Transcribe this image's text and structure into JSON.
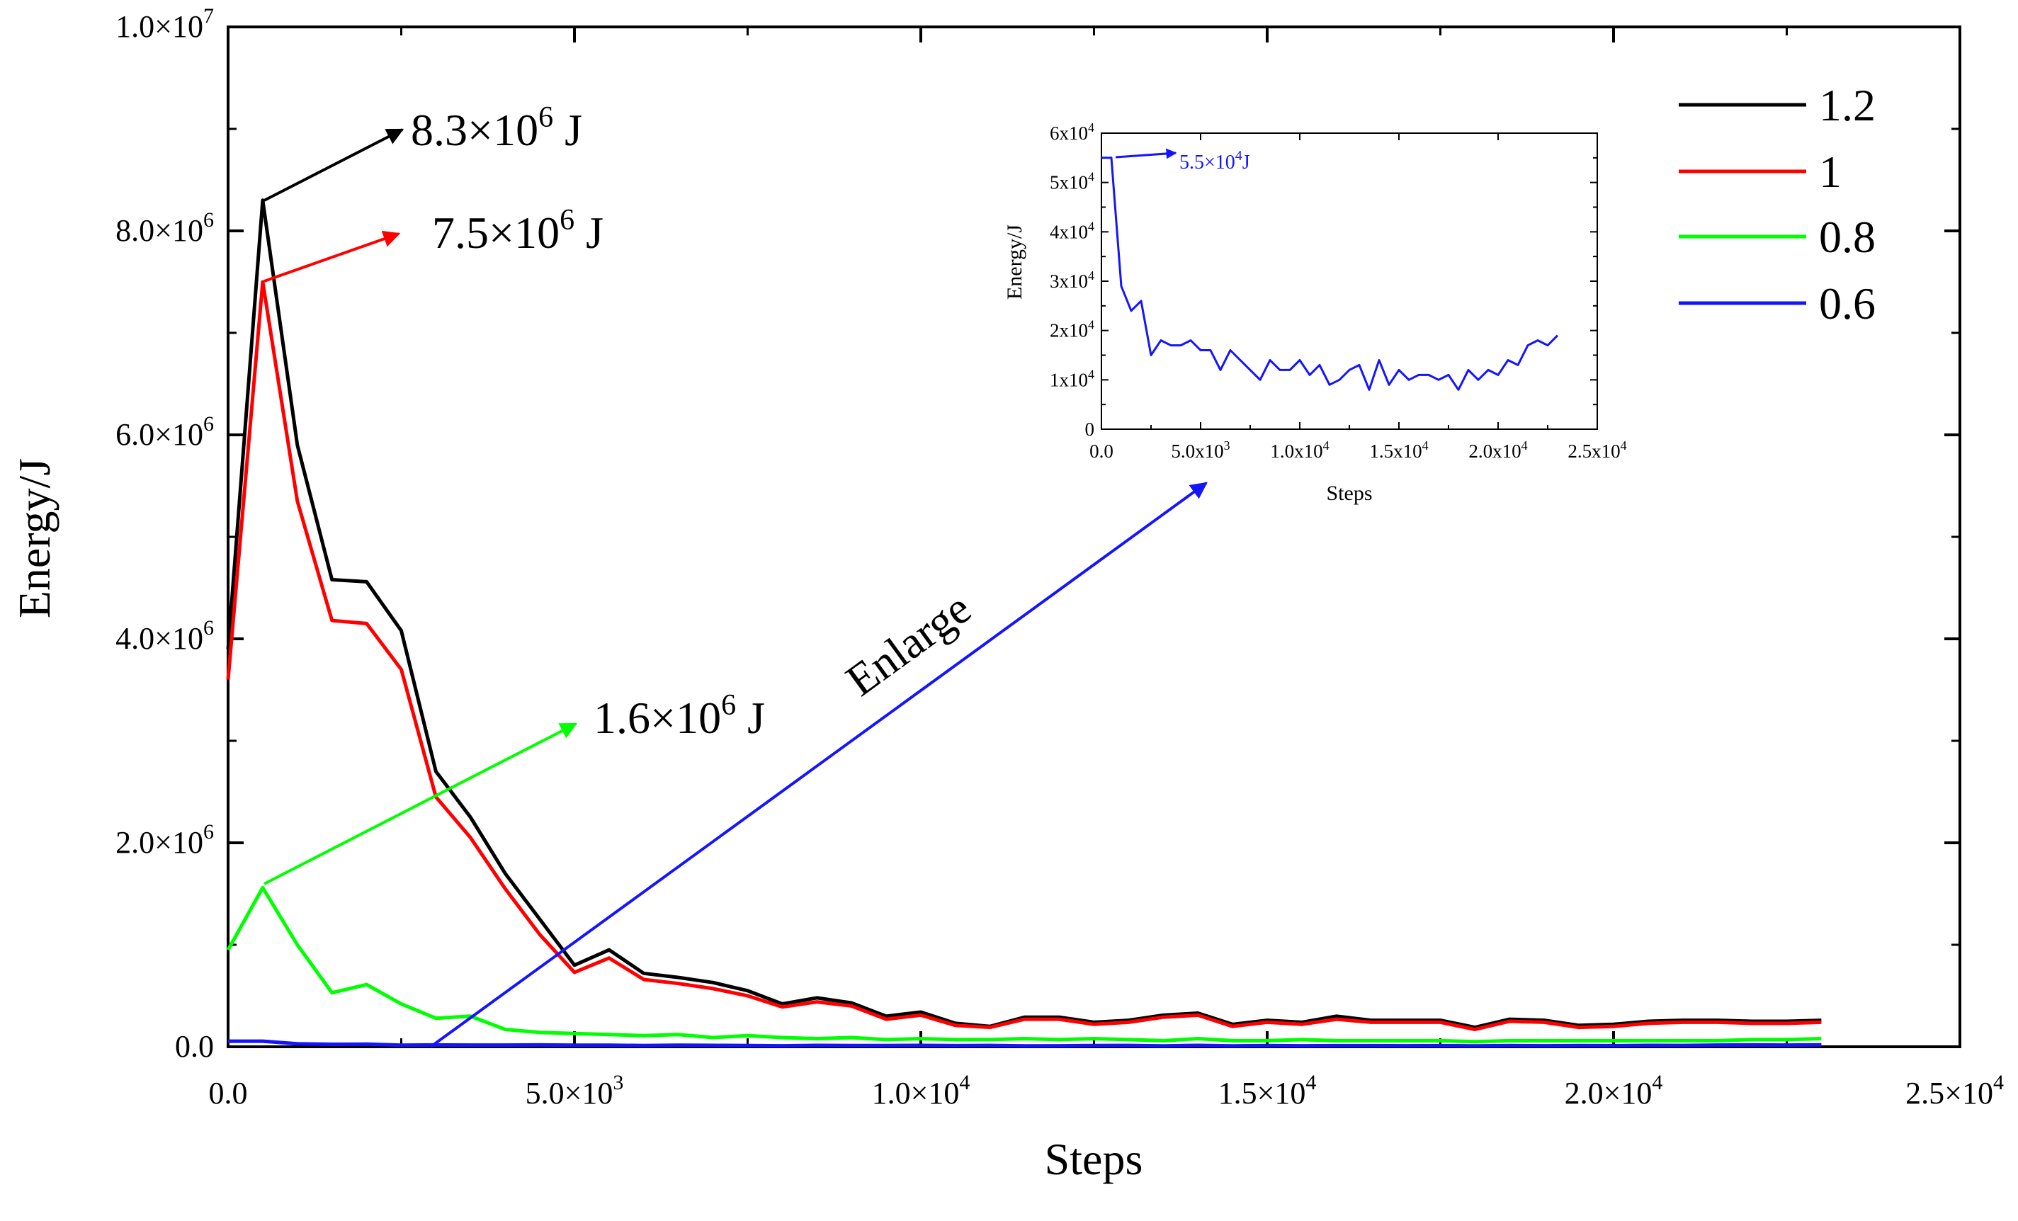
{
  "chart_data": {
    "type": "line",
    "xlabel": "Steps",
    "ylabel": "Energy/J",
    "xlim": [
      0,
      25000
    ],
    "ylim": [
      0,
      10000000
    ],
    "x_ticks": [
      {
        "value": 0,
        "label": "0.0",
        "base": "",
        "exp": ""
      },
      {
        "value": 5000,
        "label": "",
        "base": "5.0×10",
        "exp": "3"
      },
      {
        "value": 10000,
        "label": "",
        "base": "1.0×10",
        "exp": "4"
      },
      {
        "value": 15000,
        "label": "",
        "base": "1.5×10",
        "exp": "4"
      },
      {
        "value": 20000,
        "label": "",
        "base": "2.0×10",
        "exp": "4"
      },
      {
        "value": 25000,
        "label": "",
        "base": "2.5×10",
        "exp": "4"
      }
    ],
    "y_ticks": [
      {
        "value": 0,
        "label": "0.0",
        "base": "",
        "exp": ""
      },
      {
        "value": 2000000,
        "label": "",
        "base": "2.0×10",
        "exp": "6"
      },
      {
        "value": 4000000,
        "label": "",
        "base": "4.0×10",
        "exp": "6"
      },
      {
        "value": 6000000,
        "label": "",
        "base": "6.0×10",
        "exp": "6"
      },
      {
        "value": 8000000,
        "label": "",
        "base": "8.0×10",
        "exp": "6"
      },
      {
        "value": 10000000,
        "label": "",
        "base": "1.0×10",
        "exp": "7"
      }
    ],
    "series": [
      {
        "name": "1.2",
        "color": "#000000",
        "x": [
          0,
          500,
          1000,
          1500,
          2000,
          2500,
          3000,
          3500,
          4000,
          4500,
          5000,
          5500,
          6000,
          6500,
          7000,
          7500,
          8000,
          8500,
          9000,
          9500,
          10000,
          10500,
          11000,
          11500,
          12000,
          12500,
          13000,
          13500,
          14000,
          14500,
          15000,
          15500,
          16000,
          16500,
          17000,
          17500,
          18000,
          18500,
          19000,
          19500,
          20000,
          20500,
          21000,
          21500,
          22000,
          22500,
          23000
        ],
        "y": [
          3900000,
          8300000,
          5900000,
          4580000,
          4560000,
          4080000,
          2700000,
          2250000,
          1700000,
          1250000,
          800000,
          950000,
          720000,
          680000,
          630000,
          550000,
          420000,
          480000,
          430000,
          300000,
          340000,
          230000,
          200000,
          290000,
          290000,
          240000,
          260000,
          310000,
          330000,
          220000,
          260000,
          240000,
          300000,
          260000,
          260000,
          260000,
          190000,
          270000,
          260000,
          210000,
          220000,
          250000,
          260000,
          260000,
          250000,
          250000,
          260000
        ]
      },
      {
        "name": "1",
        "color": "#ff0000",
        "x": [
          0,
          500,
          1000,
          1500,
          2000,
          2500,
          3000,
          3500,
          4000,
          4500,
          5000,
          5500,
          6000,
          6500,
          7000,
          7500,
          8000,
          8500,
          9000,
          9500,
          10000,
          10500,
          11000,
          11500,
          12000,
          12500,
          13000,
          13500,
          14000,
          14500,
          15000,
          15500,
          16000,
          16500,
          17000,
          17500,
          18000,
          18500,
          19000,
          19500,
          20000,
          20500,
          21000,
          21500,
          22000,
          22500,
          23000
        ],
        "y": [
          3600000,
          7500000,
          5350000,
          4180000,
          4150000,
          3700000,
          2450000,
          2050000,
          1550000,
          1100000,
          730000,
          870000,
          660000,
          620000,
          570000,
          500000,
          390000,
          440000,
          400000,
          270000,
          310000,
          210000,
          190000,
          270000,
          270000,
          220000,
          240000,
          290000,
          310000,
          200000,
          240000,
          220000,
          270000,
          240000,
          240000,
          240000,
          170000,
          250000,
          240000,
          190000,
          200000,
          230000,
          240000,
          240000,
          230000,
          230000,
          240000
        ]
      },
      {
        "name": "0.8",
        "color": "#00ff00",
        "x": [
          0,
          500,
          1000,
          1500,
          2000,
          2500,
          3000,
          3500,
          4000,
          4500,
          5000,
          5500,
          6000,
          6500,
          7000,
          7500,
          8000,
          8500,
          9000,
          9500,
          10000,
          10500,
          11000,
          11500,
          12000,
          12500,
          13000,
          13500,
          14000,
          14500,
          15000,
          15500,
          16000,
          16500,
          17000,
          17500,
          18000,
          18500,
          19000,
          19500,
          20000,
          20500,
          21000,
          21500,
          22000,
          22500,
          23000
        ],
        "y": [
          950000,
          1560000,
          1000000,
          530000,
          610000,
          420000,
          280000,
          300000,
          170000,
          140000,
          130000,
          120000,
          110000,
          120000,
          90000,
          110000,
          90000,
          80000,
          90000,
          70000,
          80000,
          70000,
          70000,
          80000,
          70000,
          80000,
          70000,
          60000,
          80000,
          60000,
          60000,
          70000,
          60000,
          60000,
          60000,
          60000,
          50000,
          60000,
          60000,
          60000,
          60000,
          60000,
          60000,
          60000,
          70000,
          70000,
          80000
        ]
      },
      {
        "name": "0.6",
        "color": "#1414ff",
        "x": [
          0,
          500,
          1000,
          1500,
          2000,
          2500,
          3000,
          3500,
          4000,
          4500,
          5000,
          5500,
          6000,
          6500,
          7000,
          7500,
          8000,
          8500,
          9000,
          9500,
          10000,
          10500,
          11000,
          11500,
          12000,
          12500,
          13000,
          13500,
          14000,
          14500,
          15000,
          15500,
          16000,
          16500,
          17000,
          17500,
          18000,
          18500,
          19000,
          19500,
          20000,
          20500,
          21000,
          21500,
          22000,
          22500,
          23000
        ],
        "y": [
          55000,
          55000,
          29000,
          24000,
          26000,
          15000,
          18000,
          17000,
          17000,
          18000,
          16000,
          16000,
          12000,
          16000,
          14000,
          12000,
          10000,
          14000,
          12000,
          12000,
          14000,
          11000,
          13000,
          9000,
          10000,
          12000,
          13000,
          8000,
          14000,
          9000,
          12000,
          10000,
          11000,
          11000,
          10000,
          11000,
          8000,
          12000,
          10000,
          12000,
          11000,
          14000,
          13000,
          17000,
          18000,
          17000,
          19000
        ]
      }
    ],
    "legend": {
      "position": "top-right"
    },
    "annotations": [
      {
        "id": "ann-1-2",
        "base": "8.3×10",
        "exp": "6",
        "unit": " J",
        "color": "#000000"
      },
      {
        "id": "ann-1",
        "base": "7.5×10",
        "exp": "6",
        "unit": " J",
        "color": "#ff0000"
      },
      {
        "id": "ann-0-8",
        "base": "1.6×10",
        "exp": "6",
        "unit": " J",
        "color": "#00ff00"
      },
      {
        "id": "enlarge",
        "text": "Enlarge",
        "color": "#1414ff"
      }
    ],
    "inset": {
      "series_name": "0.6",
      "xlabel": "Steps",
      "ylabel": "Energy/J",
      "xlim": [
        0,
        25000
      ],
      "ylim": [
        0,
        60000
      ],
      "x_ticks": [
        {
          "value": 0,
          "label": "0.0",
          "base": "",
          "exp": ""
        },
        {
          "value": 5000,
          "label": "",
          "base": "5.0x10",
          "exp": "3"
        },
        {
          "value": 10000,
          "label": "",
          "base": "1.0x10",
          "exp": "4"
        },
        {
          "value": 15000,
          "label": "",
          "base": "1.5x10",
          "exp": "4"
        },
        {
          "value": 20000,
          "label": "",
          "base": "2.0x10",
          "exp": "4"
        },
        {
          "value": 25000,
          "label": "",
          "base": "2.5x10",
          "exp": "4"
        }
      ],
      "y_ticks": [
        {
          "value": 0,
          "label": "0",
          "base": "",
          "exp": ""
        },
        {
          "value": 10000,
          "label": "",
          "base": "1x10",
          "exp": "4"
        },
        {
          "value": 20000,
          "label": "",
          "base": "2x10",
          "exp": "4"
        },
        {
          "value": 30000,
          "label": "",
          "base": "3x10",
          "exp": "4"
        },
        {
          "value": 40000,
          "label": "",
          "base": "4x10",
          "exp": "4"
        },
        {
          "value": 50000,
          "label": "",
          "base": "5x10",
          "exp": "4"
        },
        {
          "value": 60000,
          "label": "",
          "base": "6x10",
          "exp": "4"
        }
      ],
      "annotation": {
        "base": "5.5×10",
        "exp": "4",
        "unit": "J"
      }
    }
  }
}
